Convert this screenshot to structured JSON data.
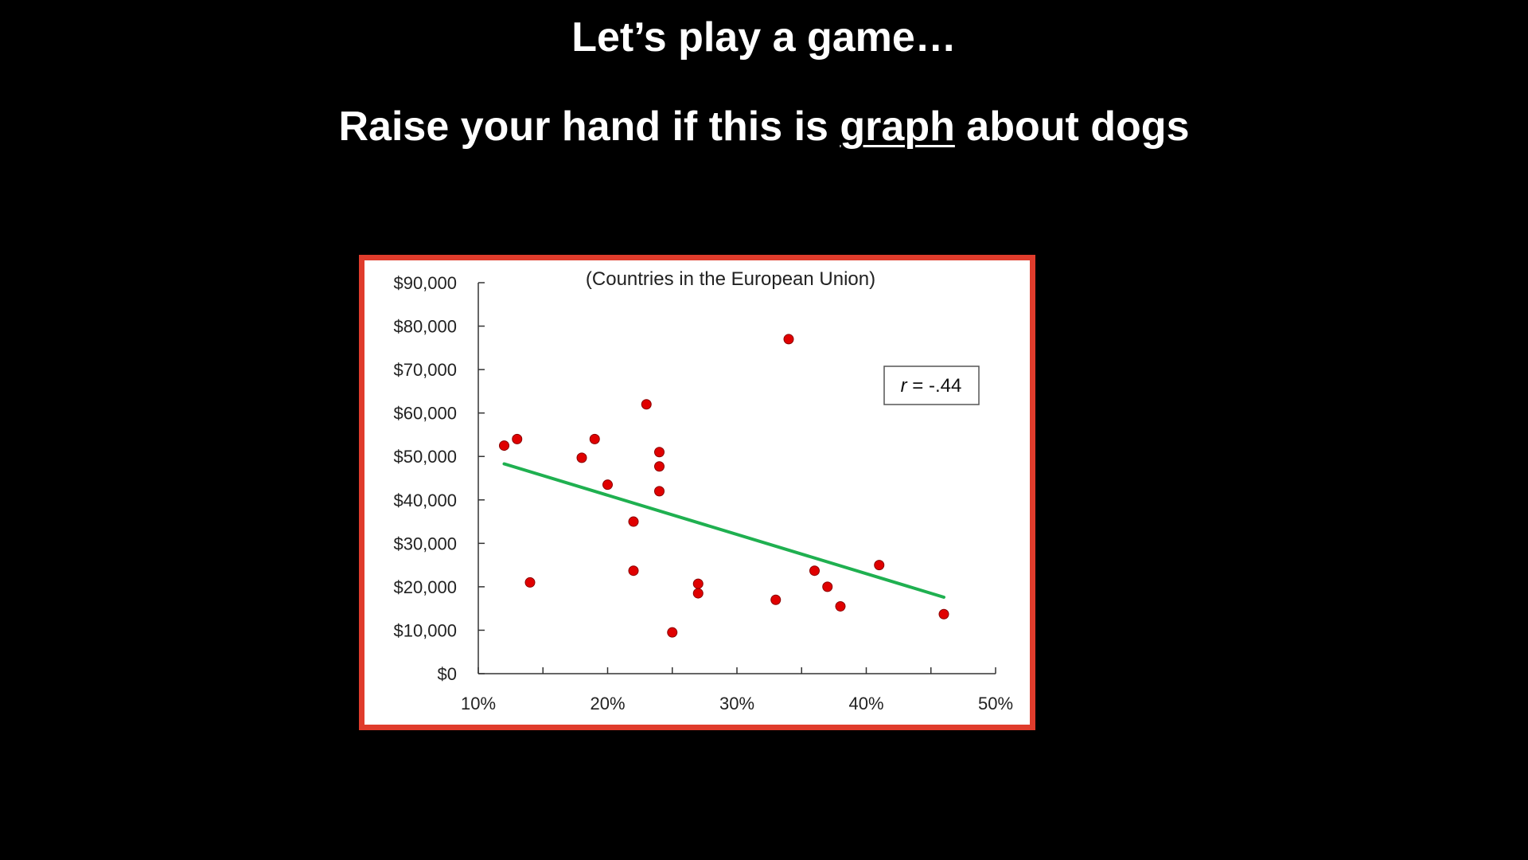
{
  "slide": {
    "title": "Let’s play a game…",
    "prompt_before": "Raise your hand if this is ",
    "prompt_link": "graph",
    "prompt_after": " about dogs"
  },
  "colors": {
    "background": "#000000",
    "frame_border": "#e03c2c",
    "point": "#e00000",
    "trendline": "#1fb050"
  },
  "chart_data": {
    "type": "scatter",
    "title": "(Countries in the European Union)",
    "xlabel": "",
    "ylabel": "",
    "xlim": [
      0.1,
      0.5
    ],
    "ylim": [
      0,
      90000
    ],
    "x_ticks": [
      0.1,
      0.2,
      0.3,
      0.4,
      0.5
    ],
    "x_tick_labels": [
      "10%",
      "20%",
      "30%",
      "40%",
      "50%"
    ],
    "y_ticks": [
      0,
      10000,
      20000,
      30000,
      40000,
      50000,
      60000,
      70000,
      80000,
      90000
    ],
    "y_tick_labels": [
      "$0",
      "$10,000",
      "$20,000",
      "$30,000",
      "$40,000",
      "$50,000",
      "$60,000",
      "$70,000",
      "$80,000",
      "$90,000"
    ],
    "points": [
      {
        "x": 0.12,
        "y": 52500
      },
      {
        "x": 0.13,
        "y": 54000
      },
      {
        "x": 0.14,
        "y": 21000
      },
      {
        "x": 0.18,
        "y": 49700
      },
      {
        "x": 0.19,
        "y": 54000
      },
      {
        "x": 0.2,
        "y": 43500
      },
      {
        "x": 0.22,
        "y": 35000
      },
      {
        "x": 0.22,
        "y": 23700
      },
      {
        "x": 0.23,
        "y": 62000
      },
      {
        "x": 0.24,
        "y": 51000
      },
      {
        "x": 0.24,
        "y": 47700
      },
      {
        "x": 0.24,
        "y": 42000
      },
      {
        "x": 0.25,
        "y": 9500
      },
      {
        "x": 0.27,
        "y": 20700
      },
      {
        "x": 0.27,
        "y": 18500
      },
      {
        "x": 0.33,
        "y": 17000
      },
      {
        "x": 0.34,
        "y": 77000
      },
      {
        "x": 0.36,
        "y": 23700
      },
      {
        "x": 0.37,
        "y": 20000
      },
      {
        "x": 0.38,
        "y": 15500
      },
      {
        "x": 0.41,
        "y": 25000
      },
      {
        "x": 0.46,
        "y": 13700
      }
    ],
    "trendline": {
      "x": [
        0.12,
        0.46
      ],
      "y": [
        48300,
        17600
      ]
    },
    "annotation": {
      "r_symbol": "r",
      "text": " = -.44"
    },
    "grid": false,
    "legend": "none"
  }
}
